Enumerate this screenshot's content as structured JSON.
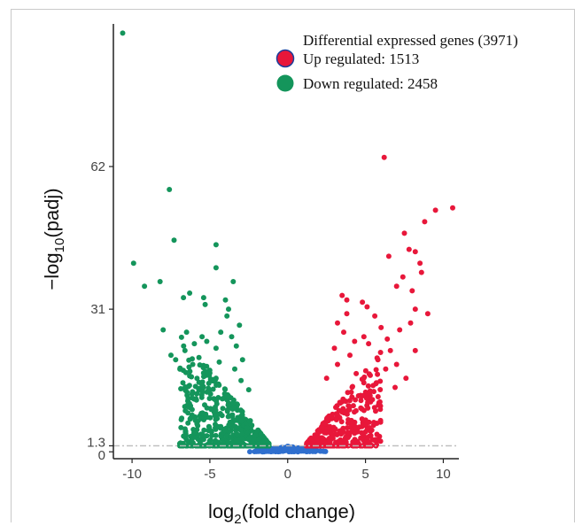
{
  "chart_data": {
    "type": "scatter",
    "title": "",
    "xlabel_main": "log",
    "xlabel_sub": "2",
    "xlabel_tail": "(fold change)",
    "ylabel_main": "−log",
    "ylabel_sub": "10",
    "ylabel_tail": "(padj)",
    "xlim": [
      -11.2,
      11.0
    ],
    "ylim": [
      -1.5,
      93
    ],
    "x_ticks": [
      -10,
      -5,
      0,
      5,
      10
    ],
    "x_tick_labels": [
      "-10",
      "-5",
      "0",
      "5",
      "10"
    ],
    "y_ticks": [
      0,
      1.3,
      31,
      62
    ],
    "y_tick_labels": [
      "0",
      "1.3",
      "31",
      "62"
    ],
    "threshold_y": 1.3,
    "grid": false,
    "legend_position": "top-right",
    "legend": {
      "header": "Differential  expressed genes (3971)",
      "up_label": "Up regulated:  1513",
      "down_label": "Down regulated:  2458"
    },
    "colors": {
      "up": "#e8173a",
      "down": "#14955b",
      "nonsig": "#2f6fce",
      "threshold": "#bdbdbd",
      "axis": "#222222"
    },
    "series": [
      {
        "name": "Up regulated",
        "count": 1513,
        "outliers": [
          [
            6.2,
            64
          ],
          [
            10.6,
            53
          ],
          [
            9.5,
            52.5
          ],
          [
            8.8,
            50
          ],
          [
            7.5,
            47.5
          ],
          [
            7.8,
            44
          ],
          [
            8.2,
            43.5
          ],
          [
            6.5,
            42.5
          ],
          [
            8.5,
            41
          ],
          [
            8.6,
            39
          ],
          [
            7.4,
            38
          ],
          [
            7.0,
            36
          ],
          [
            8.0,
            35
          ],
          [
            3.5,
            34
          ],
          [
            3.8,
            33
          ],
          [
            4.8,
            32.5
          ],
          [
            5.1,
            31.5
          ],
          [
            8.2,
            31
          ],
          [
            3.8,
            30
          ],
          [
            5.6,
            29.5
          ],
          [
            9.0,
            30
          ],
          [
            3.2,
            28
          ],
          [
            6.0,
            27
          ],
          [
            3.6,
            26
          ],
          [
            4.9,
            25
          ],
          [
            4.3,
            24
          ],
          [
            7.2,
            26.5
          ],
          [
            7.9,
            28
          ],
          [
            6.4,
            24.5
          ],
          [
            5.2,
            23.5
          ],
          [
            3.0,
            22.5
          ],
          [
            6.6,
            22
          ],
          [
            8.2,
            22
          ],
          [
            4.0,
            21
          ],
          [
            5.8,
            20
          ],
          [
            7.0,
            19
          ],
          [
            3.2,
            19
          ],
          [
            6.3,
            18
          ],
          [
            4.4,
            17
          ],
          [
            7.6,
            16
          ],
          [
            2.5,
            16
          ],
          [
            5.7,
            15
          ],
          [
            6.9,
            14
          ]
        ]
      },
      {
        "name": "Down regulated",
        "count": 2458,
        "outliers": [
          [
            -10.6,
            91
          ],
          [
            -7.6,
            57
          ],
          [
            -7.3,
            46
          ],
          [
            -9.9,
            41
          ],
          [
            -4.6,
            45
          ],
          [
            -4.6,
            40
          ],
          [
            -3.5,
            37
          ],
          [
            -9.2,
            36
          ],
          [
            -8.2,
            37
          ],
          [
            -6.3,
            34.5
          ],
          [
            -6.7,
            33.5
          ],
          [
            -5.4,
            33.5
          ],
          [
            -4.0,
            33
          ],
          [
            -5.3,
            32
          ],
          [
            -3.8,
            31
          ],
          [
            -8.0,
            26.5
          ],
          [
            -3.9,
            29.5
          ],
          [
            -3.1,
            27.5
          ],
          [
            -6.5,
            26
          ],
          [
            -5.5,
            25
          ],
          [
            -4.3,
            26
          ],
          [
            -7.5,
            21
          ],
          [
            -7.2,
            20
          ],
          [
            -6.6,
            22
          ],
          [
            -6.0,
            23.5
          ],
          [
            -5.2,
            24
          ],
          [
            -4.6,
            22.5
          ],
          [
            -3.6,
            25
          ],
          [
            -3.3,
            23
          ],
          [
            -6.1,
            19
          ],
          [
            -5.7,
            20.5
          ],
          [
            -4.4,
            19.5
          ],
          [
            -3.4,
            18
          ],
          [
            -5.1,
            17
          ],
          [
            -2.9,
            20
          ],
          [
            -6.3,
            16.5
          ],
          [
            -4.6,
            16
          ],
          [
            -3.0,
            15.5
          ],
          [
            -5.5,
            14.5
          ],
          [
            -2.5,
            13.5
          ]
        ]
      }
    ]
  }
}
